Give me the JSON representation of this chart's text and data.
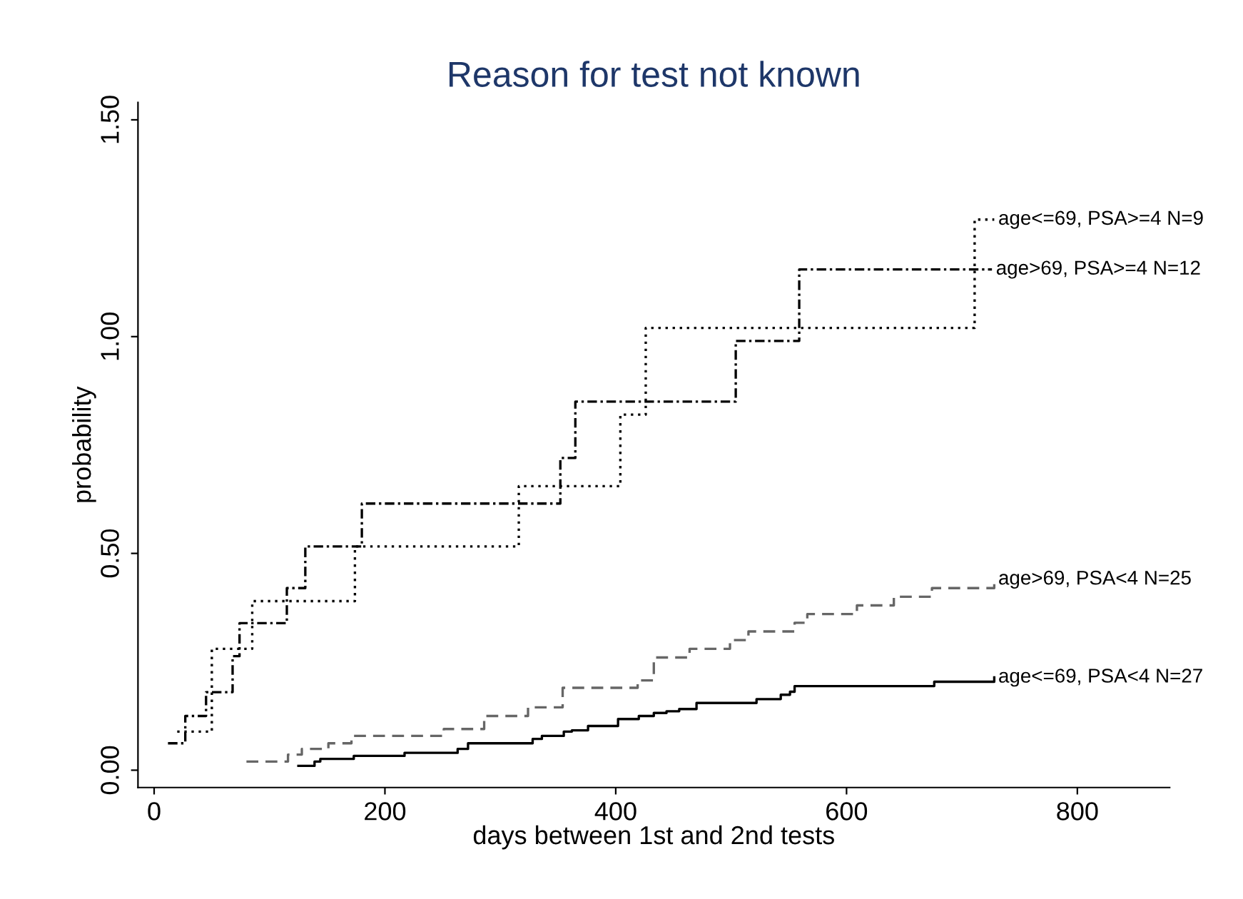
{
  "chart_data": {
    "type": "step",
    "title": "Reason for test not known",
    "xlabel": "days between 1st and 2nd tests",
    "ylabel": "probability",
    "xlim": [
      -14,
      880
    ],
    "ylim": [
      -0.04,
      1.54
    ],
    "xticks": [
      0,
      200,
      400,
      600,
      800
    ],
    "yticks": [
      {
        "value": 0,
        "label": "0.00"
      },
      {
        "value": 0.5,
        "label": "0.50"
      },
      {
        "value": 1,
        "label": "1.00"
      },
      {
        "value": 1.5,
        "label": "1.50"
      }
    ],
    "grid": false,
    "legend": false,
    "series": [
      {
        "name": "age<=69, PSA>=4 N=9",
        "color": "#000000",
        "line_style": "dotted",
        "x": [
          20,
          50,
          85,
          174,
          316,
          404,
          426,
          711,
          728
        ],
        "values": [
          0.089,
          0.28,
          0.39,
          0.516,
          0.655,
          0.82,
          1.02,
          1.27,
          1.27
        ]
      },
      {
        "name": "age>69, PSA>=4 N=12",
        "color": "#000000",
        "line_style": "dashdot",
        "x": [
          12,
          27,
          45,
          68,
          74,
          115,
          131,
          180,
          352,
          365,
          504,
          559,
          726
        ],
        "values": [
          0.062,
          0.125,
          0.18,
          0.263,
          0.339,
          0.42,
          0.516,
          0.615,
          0.72,
          0.85,
          0.99,
          1.155,
          1.155
        ]
      },
      {
        "name": "age>69, PSA<4 N=25",
        "color": "#666666",
        "line_style": "dashed",
        "x": [
          80,
          116,
          128,
          151,
          171,
          251,
          286,
          324,
          354,
          419,
          433,
          464,
          499,
          515,
          555,
          566,
          609,
          641,
          674,
          728
        ],
        "values": [
          0.02,
          0.036,
          0.049,
          0.062,
          0.079,
          0.095,
          0.125,
          0.145,
          0.19,
          0.207,
          0.26,
          0.28,
          0.3,
          0.32,
          0.34,
          0.36,
          0.38,
          0.4,
          0.42,
          0.44
        ]
      },
      {
        "name": "age<=69, PSA<4 N=27",
        "color": "#000000",
        "line_style": "solid",
        "x": [
          125,
          139,
          144,
          173,
          217,
          263,
          272,
          328,
          336,
          355,
          362,
          376,
          402,
          420,
          433,
          444,
          455,
          470,
          522,
          543,
          551,
          555,
          676,
          728
        ],
        "values": [
          0.01,
          0.02,
          0.026,
          0.033,
          0.04,
          0.049,
          0.062,
          0.072,
          0.079,
          0.089,
          0.092,
          0.102,
          0.118,
          0.125,
          0.132,
          0.136,
          0.141,
          0.155,
          0.164,
          0.174,
          0.181,
          0.194,
          0.204,
          0.214
        ]
      }
    ]
  }
}
